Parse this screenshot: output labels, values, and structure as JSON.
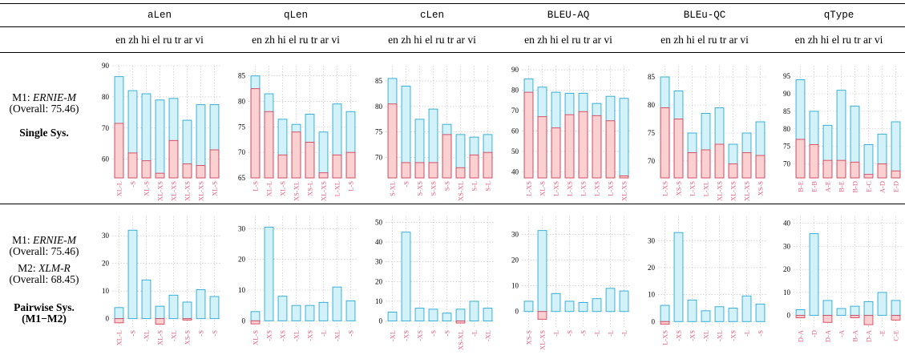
{
  "header": {
    "columns": [
      "aLen",
      "qLen",
      "cLen",
      "BLEU-AQ",
      "BLEu-QC",
      "qType"
    ],
    "languages": "en zh hi el ru tr ar vi"
  },
  "rows": {
    "single": {
      "model_prefix": "M1: ",
      "model_name": "ERNIE-M",
      "overall": "(Overall: 75.46)",
      "title": "Single Sys."
    },
    "pairwise": {
      "m1_prefix": "M1: ",
      "m1_name": "ERNIE-M",
      "m1_overall": "(Overall: 75.46)",
      "m2_prefix": "M2: ",
      "m2_name": "XLM-R",
      "m2_overall": "(Overall: 68.45)",
      "title_line1": "Pairwise Sys.",
      "title_line2": "(M1−M2)"
    }
  },
  "colors": {
    "blue_fill": "#d2f1f8",
    "blue_edge": "#29a9d4",
    "red_fill": "#fbd0d0",
    "red_edge": "#d9425a",
    "label": "#e05a7a",
    "grid": "#bbbbbb"
  },
  "chart_data": [
    {
      "type": "bar",
      "row": "single",
      "column": "aLen",
      "ylim": [
        54,
        90
      ],
      "yticks": [
        60,
        70,
        80,
        90
      ],
      "categories": [
        "XL-L",
        "-S",
        "XL-S",
        "XL-XS",
        "XL-XS",
        "XL-XS",
        "XL-XS",
        "XL-S"
      ],
      "series": [
        {
          "values": [
            86.5,
            82,
            81,
            79,
            79.5,
            72.5,
            77.5,
            77.5
          ]
        },
        {
          "values": [
            71.5,
            62,
            59.5,
            55.5,
            66,
            58.5,
            58,
            63
          ]
        }
      ]
    },
    {
      "type": "bar",
      "row": "single",
      "column": "qLen",
      "ylim": [
        65,
        87
      ],
      "yticks": [
        65,
        70,
        75,
        80,
        85
      ],
      "categories": [
        "L-S",
        "XL-L",
        "XL-S",
        "XS-XL",
        "XS-L",
        "XL-XS",
        "L-XL",
        "L-S"
      ],
      "series": [
        {
          "values": [
            85,
            81.5,
            76.5,
            75.5,
            77.5,
            74,
            79.5,
            78
          ]
        },
        {
          "values": [
            82.5,
            78,
            69.5,
            74,
            72,
            66,
            69.5,
            70
          ]
        }
      ]
    },
    {
      "type": "bar",
      "row": "single",
      "column": "cLen",
      "ylim": [
        66,
        88
      ],
      "yticks": [
        70,
        75,
        80,
        85
      ],
      "categories": [
        "S-XL",
        "-S",
        "S-XS",
        "S-XS",
        "S-S",
        "XS-XL",
        "S-L",
        "S-L"
      ],
      "series": [
        {
          "values": [
            85.5,
            84,
            77.5,
            79.5,
            76.5,
            74.5,
            74,
            74.5
          ]
        },
        {
          "values": [
            80.5,
            69,
            69,
            69,
            74.5,
            68,
            70.5,
            71
          ]
        }
      ]
    },
    {
      "type": "bar",
      "row": "single",
      "column": "BLEU-AQ",
      "ylim": [
        37,
        92
      ],
      "yticks": [
        40,
        50,
        60,
        70,
        80,
        90
      ],
      "categories": [
        "L-XS",
        "XL-S",
        "L-XS",
        "L-XS",
        "L-XS",
        "L-XS",
        "L-XS",
        "XL-XS"
      ],
      "series": [
        {
          "values": [
            85.5,
            81.5,
            79,
            78.5,
            78.5,
            73.5,
            77,
            76
          ]
        },
        {
          "values": [
            79,
            67,
            61.5,
            68,
            69.5,
            67.5,
            65,
            38
          ]
        }
      ]
    },
    {
      "type": "bar",
      "row": "single",
      "column": "BLEu-QC",
      "ylim": [
        67,
        87
      ],
      "yticks": [
        70,
        75,
        80,
        85
      ],
      "categories": [
        "L-XS",
        "XS-S",
        "L-XS",
        "L-XL",
        "XL-XS",
        "XL-XS",
        "XL-XS",
        "XS-S"
      ],
      "series": [
        {
          "values": [
            85,
            82.5,
            75,
            78.5,
            79.5,
            73,
            75,
            77
          ]
        },
        {
          "values": [
            79.5,
            77.5,
            71.5,
            72,
            73,
            69.5,
            71.5,
            71
          ]
        }
      ]
    },
    {
      "type": "bar",
      "row": "single",
      "column": "qType",
      "ylim": [
        66,
        98
      ],
      "yticks": [
        70,
        75,
        80,
        85,
        90,
        95
      ],
      "categories": [
        "B-E",
        "E-B",
        "A-E",
        "B-E",
        "B-D",
        "E-C",
        "A-D",
        "E-D"
      ],
      "series": [
        {
          "values": [
            94,
            85,
            81,
            91,
            86.5,
            75.5,
            78.5,
            82
          ]
        },
        {
          "values": [
            77,
            75.5,
            71,
            71,
            70.5,
            67,
            70,
            68
          ]
        }
      ]
    },
    {
      "type": "bar",
      "row": "pairwise",
      "column": "aLen",
      "ylim": [
        -3,
        37
      ],
      "yticks": [
        0,
        10,
        20,
        30
      ],
      "categories": [
        "XL-L",
        "-S",
        "-XL",
        "XL-S",
        "-XL",
        "XS-S",
        "-S",
        "-S"
      ],
      "series": [
        {
          "values": [
            4,
            32,
            14,
            4.5,
            8.5,
            6,
            10.5,
            8
          ]
        },
        {
          "values": [
            -1.5,
            0,
            0,
            -2,
            0,
            -0.5,
            0,
            0
          ]
        }
      ]
    },
    {
      "type": "bar",
      "row": "pairwise",
      "column": "qLen",
      "ylim": [
        -2,
        34
      ],
      "yticks": [
        0,
        10,
        20,
        30
      ],
      "categories": [
        "XL-S",
        "-XS",
        "-XS",
        "-XL",
        "-XS",
        "-L",
        "-XL",
        "-S"
      ],
      "series": [
        {
          "values": [
            3,
            30.5,
            8,
            5,
            5,
            6,
            11,
            6.5
          ]
        },
        {
          "values": [
            -1,
            0,
            0,
            0,
            0,
            0,
            0,
            0
          ]
        }
      ]
    },
    {
      "type": "bar",
      "row": "pairwise",
      "column": "cLen",
      "ylim": [
        -3,
        53
      ],
      "yticks": [
        0,
        10,
        20,
        30,
        40,
        50
      ],
      "categories": [
        "-XL",
        "-XS",
        "-XS",
        "-S",
        "-S",
        "XS-XL",
        "-L",
        "-XL"
      ],
      "series": [
        {
          "values": [
            4.5,
            45,
            6.5,
            6,
            4,
            6,
            10,
            6.5
          ]
        },
        {
          "values": [
            0,
            0,
            0,
            0,
            0,
            -1,
            0,
            0
          ]
        }
      ]
    },
    {
      "type": "bar",
      "row": "pairwise",
      "column": "BLEU-AQ",
      "ylim": [
        -6,
        37
      ],
      "yticks": [
        0,
        10,
        20,
        30
      ],
      "categories": [
        "XS-S",
        "XL-XS",
        "-L",
        "-S",
        "-S",
        "-L",
        "-L",
        "-L"
      ],
      "series": [
        {
          "values": [
            4,
            31.5,
            7,
            4,
            3.5,
            5,
            9,
            8
          ]
        },
        {
          "values": [
            0,
            -3,
            0,
            0,
            0,
            0,
            0,
            0
          ]
        }
      ]
    },
    {
      "type": "bar",
      "row": "pairwise",
      "column": "BLEu-QC",
      "ylim": [
        -2,
        39
      ],
      "yticks": [
        0,
        10,
        20,
        30
      ],
      "categories": [
        "L-XS",
        "-XS",
        "-XS",
        "-XL",
        "-XL",
        "-XS",
        "-L",
        "-S"
      ],
      "series": [
        {
          "values": [
            6,
            33,
            8,
            4,
            5.5,
            5,
            9.5,
            6.5
          ]
        },
        {
          "values": [
            -1,
            0,
            0,
            0,
            0,
            0,
            0,
            0
          ]
        }
      ]
    },
    {
      "type": "bar",
      "row": "pairwise",
      "column": "qType",
      "ylim": [
        -5,
        43
      ],
      "yticks": [
        0,
        10,
        20,
        30,
        40
      ],
      "categories": [
        "D-A",
        "-D",
        "D-A",
        "-A",
        "B-A",
        "D-A",
        "-E",
        "C-E"
      ],
      "series": [
        {
          "values": [
            2.5,
            35.5,
            6.5,
            3,
            4,
            6,
            10,
            6.5
          ]
        },
        {
          "values": [
            -1,
            0,
            -3,
            0,
            -1,
            -4,
            0,
            -2
          ]
        }
      ]
    }
  ]
}
